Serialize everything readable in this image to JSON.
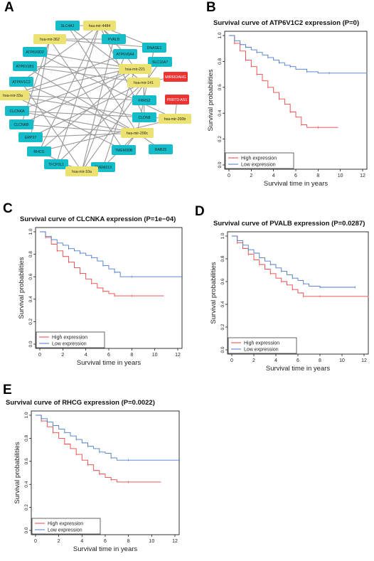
{
  "panels": {
    "A": "A",
    "B": "B",
    "C": "C",
    "D": "D",
    "E": "E"
  },
  "colors": {
    "mrna": "#14bdc9",
    "mirna": "#ece271",
    "lncrna": "#ee3333",
    "edge": "#999999",
    "high": "#ee4444",
    "low": "#4a7ac8"
  },
  "network": {
    "nodes": [
      {
        "id": "SLC4A1",
        "type": "mrna"
      },
      {
        "id": "hsa-mir-4484",
        "type": "mirna"
      },
      {
        "id": "hsa-mir-362",
        "type": "mirna"
      },
      {
        "id": "PVALB",
        "type": "mrna"
      },
      {
        "id": "DNASE1",
        "type": "mrna"
      },
      {
        "id": "ATP6V0D2",
        "type": "mrna"
      },
      {
        "id": "ATP6V0A4",
        "type": "mrna"
      },
      {
        "id": "SLC16A7",
        "type": "mrna"
      },
      {
        "id": "ATP6V1B1",
        "type": "mrna"
      },
      {
        "id": "hsa-mir-221",
        "type": "mirna"
      },
      {
        "id": "MIR663AHG",
        "type": "lncrna"
      },
      {
        "id": "ATP6V1C2",
        "type": "mrna"
      },
      {
        "id": "hsa-mir-141",
        "type": "mirna"
      },
      {
        "id": "PRRT3-AS1",
        "type": "lncrna"
      },
      {
        "id": "hsa-mir-33a",
        "type": "mirna"
      },
      {
        "id": "FRRS2",
        "type": "mrna"
      },
      {
        "id": "CLCNKA",
        "type": "mrna"
      },
      {
        "id": "CLDN8",
        "type": "mrna"
      },
      {
        "id": "hsa-mir-200b",
        "type": "mirna"
      },
      {
        "id": "CLCNKB",
        "type": "mrna"
      },
      {
        "id": "hsa-mir-200c",
        "type": "mirna"
      },
      {
        "id": "ERP27",
        "type": "mrna"
      },
      {
        "id": "TMEM30B",
        "type": "mrna"
      },
      {
        "id": "RHCG",
        "type": "mrna"
      },
      {
        "id": "RAB25",
        "type": "mrna"
      },
      {
        "id": "TFCP2L1",
        "type": "mrna"
      },
      {
        "id": "TMEM213",
        "type": "mrna"
      },
      {
        "id": "hsa-mir-10a",
        "type": "mirna"
      }
    ],
    "edges": [
      [
        "SLC4A1",
        "hsa-mir-4484"
      ],
      [
        "hsa-mir-4484",
        "PVALB"
      ],
      [
        "hsa-mir-4484",
        "DNASE1"
      ],
      [
        "hsa-mir-4484",
        "ATP6V0A4"
      ],
      [
        "hsa-mir-4484",
        "CLDN8"
      ],
      [
        "hsa-mir-4484",
        "TFCP2L1"
      ],
      [
        "hsa-mir-4484",
        "ATP6V1C2"
      ],
      [
        "hsa-mir-4484",
        "RHCG"
      ],
      [
        "hsa-mir-362",
        "PVALB"
      ],
      [
        "hsa-mir-362",
        "CLCNKB"
      ],
      [
        "hsa-mir-362",
        "TMEM30B"
      ],
      [
        "hsa-mir-362",
        "ERP27"
      ],
      [
        "hsa-mir-221",
        "ATP6V0D2"
      ],
      [
        "hsa-mir-221",
        "ATP6V0A4"
      ],
      [
        "hsa-mir-221",
        "SLC16A7"
      ],
      [
        "hsa-mir-221",
        "CLCNKA"
      ],
      [
        "hsa-mir-221",
        "RHCG"
      ],
      [
        "hsa-mir-221",
        "TMEM213"
      ],
      [
        "hsa-mir-221",
        "ATP6V1B1"
      ],
      [
        "hsa-mir-141",
        "ATP6V1B1"
      ],
      [
        "hsa-mir-141",
        "MIR663AHG"
      ],
      [
        "hsa-mir-141",
        "FRRS2"
      ],
      [
        "hsa-mir-141",
        "ERP27"
      ],
      [
        "hsa-mir-141",
        "TFCP2L1"
      ],
      [
        "hsa-mir-141",
        "SLC4A1"
      ],
      [
        "hsa-mir-33a",
        "FRRS2"
      ],
      [
        "hsa-mir-33a",
        "CLDN8"
      ],
      [
        "hsa-mir-33a",
        "SLC16A7"
      ],
      [
        "hsa-mir-33a",
        "TMEM30B"
      ],
      [
        "hsa-mir-200b",
        "PRRT3-AS1"
      ],
      [
        "hsa-mir-200b",
        "CLCNKA"
      ],
      [
        "hsa-mir-200b",
        "ATP6V0D2"
      ],
      [
        "hsa-mir-200b",
        "RHCG"
      ],
      [
        "hsa-mir-200c",
        "CLCNKB"
      ],
      [
        "hsa-mir-200c",
        "ATP6V1C2"
      ],
      [
        "hsa-mir-200c",
        "TMEM30B"
      ],
      [
        "hsa-mir-200c",
        "RAB25"
      ],
      [
        "hsa-mir-200c",
        "ERP27"
      ],
      [
        "hsa-mir-200c",
        "DNASE1"
      ],
      [
        "hsa-mir-200c",
        "TMEM213"
      ],
      [
        "hsa-mir-200c",
        "ATP6V1B1"
      ],
      [
        "hsa-mir-200c",
        "SLC4A1"
      ],
      [
        "hsa-mir-200c",
        "CLCNKA"
      ],
      [
        "hsa-mir-10a",
        "TFCP2L1"
      ],
      [
        "hsa-mir-10a",
        "TMEM213"
      ],
      [
        "hsa-mir-10a",
        "RHCG"
      ],
      [
        "hsa-mir-10a",
        "PVALB"
      ],
      [
        "hsa-mir-10a",
        "SLC16A7"
      ],
      [
        "hsa-mir-10a",
        "ATP6V0A4"
      ],
      [
        "hsa-mir-10a",
        "ATP6V1C2"
      ],
      [
        "hsa-mir-362",
        "DNASE1"
      ],
      [
        "hsa-mir-33a",
        "ATP6V0A4"
      ],
      [
        "hsa-mir-221",
        "CLCNKB"
      ],
      [
        "hsa-mir-141",
        "CLDN8"
      ]
    ]
  },
  "chart_data": [
    {
      "id": "B",
      "type": "line",
      "title": "Survival curve of ATP6V1C2 expression (P=0)",
      "xlabel": "Survival time in years",
      "ylabel": "Survival probabilities",
      "xlim": [
        0,
        12
      ],
      "ylim": [
        0,
        1
      ],
      "xticks": [
        "0",
        "2",
        "4",
        "6",
        "8",
        "10",
        "12"
      ],
      "yticks": [
        "0.0",
        "0.2",
        "0.4",
        "0.6",
        "0.8",
        "1.0"
      ],
      "legend": "bottom-left",
      "series": [
        {
          "name": "High expression",
          "color": "#ee4444",
          "x": [
            0,
            0.5,
            1,
            1.5,
            2,
            2.5,
            3,
            3.5,
            4,
            4.5,
            5,
            5.5,
            6,
            6.5,
            7,
            8,
            9.8
          ],
          "y": [
            1.0,
            0.94,
            0.88,
            0.81,
            0.76,
            0.7,
            0.65,
            0.6,
            0.56,
            0.51,
            0.47,
            0.41,
            0.37,
            0.31,
            0.29,
            0.29,
            0.29
          ]
        },
        {
          "name": "Low expression",
          "color": "#4a7ac8",
          "x": [
            0,
            0.5,
            1,
            1.5,
            2,
            2.5,
            3,
            3.5,
            4,
            4.5,
            5,
            5.5,
            6,
            7,
            8,
            9,
            10,
            12.4
          ],
          "y": [
            1.0,
            0.96,
            0.93,
            0.91,
            0.89,
            0.87,
            0.85,
            0.83,
            0.81,
            0.79,
            0.77,
            0.76,
            0.74,
            0.72,
            0.71,
            0.71,
            0.71,
            0.71
          ]
        }
      ]
    },
    {
      "id": "C",
      "type": "line",
      "title": "Survival curve of CLCNKA expression (P=1e−04)",
      "xlabel": "Survival time in years",
      "ylabel": "Survival probabilities",
      "xlim": [
        0,
        12
      ],
      "ylim": [
        0,
        1
      ],
      "xticks": [
        "0",
        "2",
        "4",
        "6",
        "8",
        "10",
        "12"
      ],
      "yticks": [
        "0.0",
        "0.2",
        "0.4",
        "0.6",
        "0.8",
        "1.0"
      ],
      "legend": "bottom-left",
      "series": [
        {
          "name": "High expression",
          "color": "#ee4444",
          "x": [
            0,
            0.5,
            1,
            1.5,
            2,
            2.5,
            3,
            3.5,
            4,
            4.5,
            5,
            5.5,
            6,
            6.5,
            7,
            8,
            10.8
          ],
          "y": [
            1.0,
            0.95,
            0.89,
            0.83,
            0.78,
            0.73,
            0.68,
            0.63,
            0.58,
            0.54,
            0.5,
            0.47,
            0.45,
            0.43,
            0.43,
            0.43,
            0.43
          ]
        },
        {
          "name": "Low expression",
          "color": "#4a7ac8",
          "x": [
            0,
            0.5,
            1,
            1.5,
            2,
            2.5,
            3,
            3.5,
            4,
            4.5,
            5,
            5.5,
            6,
            6.5,
            7,
            8,
            10,
            12.4
          ],
          "y": [
            1.0,
            0.96,
            0.93,
            0.9,
            0.88,
            0.85,
            0.83,
            0.81,
            0.79,
            0.77,
            0.74,
            0.7,
            0.67,
            0.64,
            0.6,
            0.6,
            0.6,
            0.6
          ]
        }
      ]
    },
    {
      "id": "D",
      "type": "line",
      "title": "Survival curve of PVALB expression (P=0.0287)",
      "xlabel": "Survival time in years",
      "ylabel": "Survival probabilities",
      "xlim": [
        0,
        12
      ],
      "ylim": [
        0,
        1
      ],
      "xticks": [
        "0",
        "2",
        "4",
        "6",
        "8",
        "10",
        "12"
      ],
      "yticks": [
        "0.0",
        "0.2",
        "0.4",
        "0.6",
        "0.8",
        "1.0"
      ],
      "legend": "bottom-left",
      "series": [
        {
          "name": "High expression",
          "color": "#ee4444",
          "x": [
            0,
            0.5,
            1,
            1.5,
            2,
            2.5,
            3,
            3.5,
            4,
            4.5,
            5,
            5.5,
            6,
            6.5,
            7,
            8,
            10,
            12.4
          ],
          "y": [
            1.0,
            0.94,
            0.89,
            0.84,
            0.79,
            0.75,
            0.71,
            0.67,
            0.63,
            0.6,
            0.57,
            0.53,
            0.5,
            0.47,
            0.47,
            0.47,
            0.47,
            0.47
          ]
        },
        {
          "name": "Low expression",
          "color": "#4a7ac8",
          "x": [
            0,
            0.5,
            1,
            1.5,
            2,
            2.5,
            3,
            3.5,
            4,
            4.5,
            5,
            5.5,
            6,
            6.5,
            7,
            8,
            9,
            11.2
          ],
          "y": [
            1.0,
            0.96,
            0.92,
            0.88,
            0.85,
            0.81,
            0.78,
            0.75,
            0.72,
            0.69,
            0.66,
            0.63,
            0.61,
            0.58,
            0.56,
            0.55,
            0.55,
            0.55
          ]
        }
      ]
    },
    {
      "id": "E",
      "type": "line",
      "title": "Survival curve of RHCG expression (P=0.0022)",
      "xlabel": "Survival time in years",
      "ylabel": "Survival probabilities",
      "xlim": [
        0,
        12
      ],
      "ylim": [
        0,
        1
      ],
      "xticks": [
        "0",
        "2",
        "4",
        "6",
        "8",
        "10",
        "12"
      ],
      "yticks": [
        "0.0",
        "0.2",
        "0.4",
        "0.6",
        "0.8",
        "1.0"
      ],
      "legend": "bottom-left",
      "series": [
        {
          "name": "High expression",
          "color": "#ee4444",
          "x": [
            0,
            0.5,
            1,
            1.5,
            2,
            2.5,
            3,
            3.5,
            4,
            4.5,
            5,
            5.5,
            6,
            6.5,
            7,
            8,
            10.8
          ],
          "y": [
            1.0,
            0.95,
            0.9,
            0.85,
            0.8,
            0.75,
            0.71,
            0.66,
            0.61,
            0.57,
            0.52,
            0.49,
            0.46,
            0.44,
            0.42,
            0.42,
            0.42
          ]
        },
        {
          "name": "Low expression",
          "color": "#4a7ac8",
          "x": [
            0,
            0.5,
            1,
            1.5,
            2,
            2.5,
            3,
            3.5,
            4,
            4.5,
            5,
            5.5,
            6,
            6.5,
            7,
            8,
            10,
            12.4
          ],
          "y": [
            1.0,
            0.97,
            0.94,
            0.91,
            0.88,
            0.85,
            0.82,
            0.79,
            0.76,
            0.73,
            0.71,
            0.68,
            0.67,
            0.63,
            0.61,
            0.61,
            0.61,
            0.61
          ]
        }
      ]
    }
  ]
}
